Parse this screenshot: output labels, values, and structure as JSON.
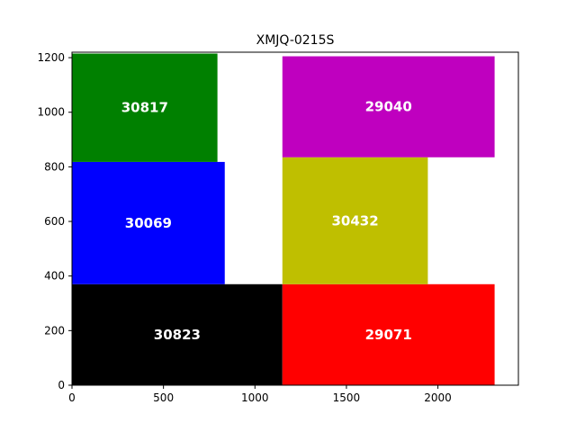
{
  "chart_data": {
    "type": "treemap",
    "title": "XMJQ-0215S",
    "xlim": [
      0,
      2440
    ],
    "ylim": [
      0,
      1220
    ],
    "xticks": [
      {
        "value": 0,
        "label": "0"
      },
      {
        "value": 500,
        "label": "500"
      },
      {
        "value": 1000,
        "label": "1000"
      },
      {
        "value": 1500,
        "label": "1500"
      },
      {
        "value": 2000,
        "label": "2000"
      }
    ],
    "yticks": [
      {
        "value": 0,
        "label": "0"
      },
      {
        "value": 200,
        "label": "200"
      },
      {
        "value": 400,
        "label": "400"
      },
      {
        "value": 600,
        "label": "600"
      },
      {
        "value": 800,
        "label": "800"
      },
      {
        "value": 1000,
        "label": "1000"
      },
      {
        "value": 1200,
        "label": "1200"
      }
    ],
    "rectangles": [
      {
        "label": "30823",
        "color": "#000000",
        "x0": 0,
        "x1": 1150,
        "y0": 0,
        "y1": 370
      },
      {
        "label": "30069",
        "color": "#0000ff",
        "x0": 0,
        "x1": 835,
        "y0": 370,
        "y1": 818
      },
      {
        "label": "30817",
        "color": "#008000",
        "x0": 0,
        "x1": 795,
        "y0": 818,
        "y1": 1215
      },
      {
        "label": "29071",
        "color": "#ff0000",
        "x0": 1150,
        "x1": 2310,
        "y0": 0,
        "y1": 370
      },
      {
        "label": "30432",
        "color": "#bfbf00",
        "x0": 1150,
        "x1": 1945,
        "y0": 370,
        "y1": 835
      },
      {
        "label": "29040",
        "color": "#bf00bf",
        "x0": 1150,
        "x1": 2310,
        "y0": 835,
        "y1": 1205
      }
    ]
  }
}
